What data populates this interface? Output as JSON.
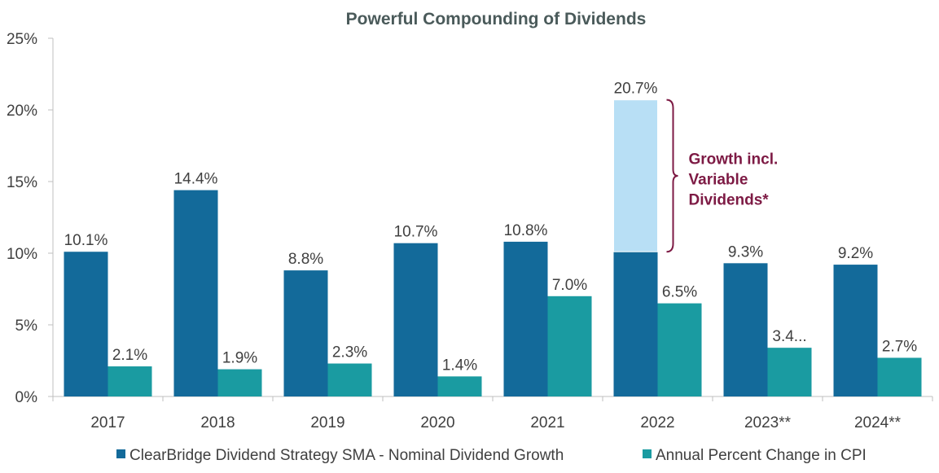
{
  "chart_data": {
    "type": "bar",
    "title": "Powerful Compounding of Dividends",
    "categories": [
      "2017",
      "2018",
      "2019",
      "2020",
      "2021",
      "2022",
      "2023**",
      "2024**"
    ],
    "series": [
      {
        "name": "ClearBridge Dividend Strategy SMA - Nominal Dividend Growth",
        "values": [
          10.1,
          14.4,
          8.8,
          10.7,
          10.8,
          10.1,
          9.3,
          9.2
        ],
        "labels": [
          "10.1%",
          "14.4%",
          "8.8%",
          "10.7%",
          "10.8%",
          "",
          "9.3%",
          "9.2%"
        ],
        "color": "#136a9a"
      },
      {
        "name": "Annual Percent Change in CPI",
        "values": [
          2.1,
          1.9,
          2.3,
          1.4,
          7.0,
          6.5,
          3.4,
          2.7
        ],
        "labels": [
          "2.1%",
          "1.9%",
          "2.3%",
          "1.4%",
          "7.0%",
          "6.5%",
          "3.4...",
          "2.7%"
        ],
        "color": "#1a9ba1"
      }
    ],
    "variable_dividends": {
      "category": "2022",
      "base": 10.1,
      "total": 20.7,
      "label": "20.7%",
      "color": "#b8dff5"
    },
    "annotation": [
      "Growth incl.",
      "Variable",
      "Dividends*"
    ],
    "annotation_color": "#7d1a44",
    "yticks": [
      "0%",
      "5%",
      "10%",
      "15%",
      "20%",
      "25%"
    ],
    "ylim": [
      0,
      25
    ],
    "xlabel": "",
    "ylabel": "",
    "grid": false,
    "legend_position": "bottom"
  }
}
